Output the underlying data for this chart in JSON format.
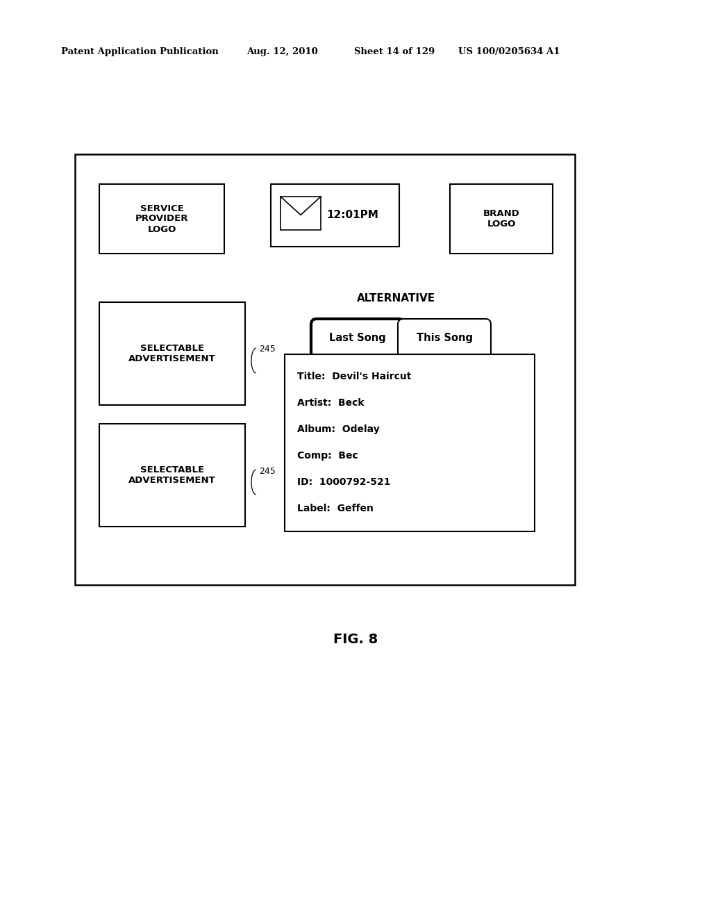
{
  "bg_color": "#ffffff",
  "header_text": "Patent Application Publication",
  "header_date": "Aug. 12, 2010",
  "header_sheet": "Sheet 14 of 129",
  "header_patent": "US 100/0205634 A1",
  "fig_label": "FIG. 8",
  "service_logo_text": "SERVICE\nPROVIDER\nLOGO",
  "clock_text": "12:01PM",
  "brand_text": "BRAND\nLOGO",
  "ad1_text": "SELECTABLE\nADVERTISEMENT",
  "ad2_text": "SELECTABLE\nADVERTISEMENT",
  "alt_label": "ALTERNATIVE",
  "btn_last_song": "Last Song",
  "btn_this_song": "This Song",
  "info_lines": [
    "Title:  Devil's Haircut",
    "Artist:  Beck",
    "Album:  Odelay",
    "Comp:  Bec",
    "ID:  1000792-521",
    "Label:  Geffen"
  ]
}
